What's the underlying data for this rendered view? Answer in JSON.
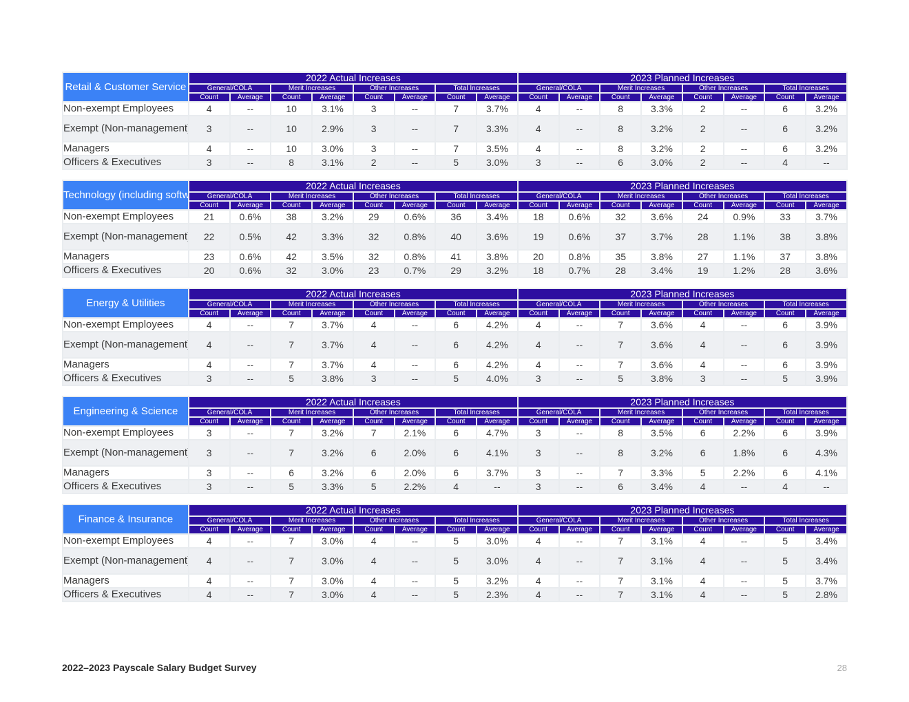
{
  "headers": {
    "group_2022": "2022 Actual Increases",
    "group_2023": "2023 Planned Increases",
    "subgroups": [
      "General/COLA",
      "Merit Increases",
      "Other Increases",
      "Total Increases"
    ],
    "count_label": "Count",
    "average_label": "Average"
  },
  "row_labels": [
    "Non-exempt Employees",
    "Exempt (Non-management) Employees",
    "Managers",
    "Officers & Executives"
  ],
  "industries": [
    {
      "name": "Retail & Customer Service",
      "rows": [
        [
          "4",
          "--",
          "10",
          "3.1%",
          "3",
          "--",
          "7",
          "3.7%",
          "4",
          "--",
          "8",
          "3.3%",
          "2",
          "--",
          "6",
          "3.2%"
        ],
        [
          "3",
          "--",
          "10",
          "2.9%",
          "3",
          "--",
          "7",
          "3.3%",
          "4",
          "--",
          "8",
          "3.2%",
          "2",
          "--",
          "6",
          "3.2%"
        ],
        [
          "4",
          "--",
          "10",
          "3.0%",
          "3",
          "--",
          "7",
          "3.5%",
          "4",
          "--",
          "8",
          "3.2%",
          "2",
          "--",
          "6",
          "3.2%"
        ],
        [
          "3",
          "--",
          "8",
          "3.1%",
          "2",
          "--",
          "5",
          "3.0%",
          "3",
          "--",
          "6",
          "3.0%",
          "2",
          "--",
          "4",
          "--"
        ]
      ]
    },
    {
      "name": "Technology (including software)",
      "rows": [
        [
          "21",
          "0.6%",
          "38",
          "3.2%",
          "29",
          "0.6%",
          "36",
          "3.4%",
          "18",
          "0.6%",
          "32",
          "3.6%",
          "24",
          "0.9%",
          "33",
          "3.7%"
        ],
        [
          "22",
          "0.5%",
          "42",
          "3.3%",
          "32",
          "0.8%",
          "40",
          "3.6%",
          "19",
          "0.6%",
          "37",
          "3.7%",
          "28",
          "1.1%",
          "38",
          "3.8%"
        ],
        [
          "23",
          "0.6%",
          "42",
          "3.5%",
          "32",
          "0.8%",
          "41",
          "3.8%",
          "20",
          "0.8%",
          "35",
          "3.8%",
          "27",
          "1.1%",
          "37",
          "3.8%"
        ],
        [
          "20",
          "0.6%",
          "32",
          "3.0%",
          "23",
          "0.7%",
          "29",
          "3.2%",
          "18",
          "0.7%",
          "28",
          "3.4%",
          "19",
          "1.2%",
          "28",
          "3.6%"
        ]
      ]
    },
    {
      "name": "Energy & Utilities",
      "rows": [
        [
          "4",
          "--",
          "7",
          "3.7%",
          "4",
          "--",
          "6",
          "4.2%",
          "4",
          "--",
          "7",
          "3.6%",
          "4",
          "--",
          "6",
          "3.9%"
        ],
        [
          "4",
          "--",
          "7",
          "3.7%",
          "4",
          "--",
          "6",
          "4.2%",
          "4",
          "--",
          "7",
          "3.6%",
          "4",
          "--",
          "6",
          "3.9%"
        ],
        [
          "4",
          "--",
          "7",
          "3.7%",
          "4",
          "--",
          "6",
          "4.2%",
          "4",
          "--",
          "7",
          "3.6%",
          "4",
          "--",
          "6",
          "3.9%"
        ],
        [
          "3",
          "--",
          "5",
          "3.8%",
          "3",
          "--",
          "5",
          "4.0%",
          "3",
          "--",
          "5",
          "3.8%",
          "3",
          "--",
          "5",
          "3.9%"
        ]
      ]
    },
    {
      "name": "Engineering & Science",
      "rows": [
        [
          "3",
          "--",
          "7",
          "3.2%",
          "7",
          "2.1%",
          "6",
          "4.7%",
          "3",
          "--",
          "8",
          "3.5%",
          "6",
          "2.2%",
          "6",
          "3.9%"
        ],
        [
          "3",
          "--",
          "7",
          "3.2%",
          "6",
          "2.0%",
          "6",
          "4.1%",
          "3",
          "--",
          "8",
          "3.2%",
          "6",
          "1.8%",
          "6",
          "4.3%"
        ],
        [
          "3",
          "--",
          "6",
          "3.2%",
          "6",
          "2.0%",
          "6",
          "3.7%",
          "3",
          "--",
          "7",
          "3.3%",
          "5",
          "2.2%",
          "6",
          "4.1%"
        ],
        [
          "3",
          "--",
          "5",
          "3.3%",
          "5",
          "2.2%",
          "4",
          "--",
          "3",
          "--",
          "6",
          "3.4%",
          "4",
          "--",
          "4",
          "--"
        ]
      ]
    },
    {
      "name": "Finance & Insurance",
      "rows": [
        [
          "4",
          "--",
          "7",
          "3.0%",
          "4",
          "--",
          "5",
          "3.0%",
          "4",
          "--",
          "7",
          "3.1%",
          "4",
          "--",
          "5",
          "3.4%"
        ],
        [
          "4",
          "--",
          "7",
          "3.0%",
          "4",
          "--",
          "5",
          "3.0%",
          "4",
          "--",
          "7",
          "3.1%",
          "4",
          "--",
          "5",
          "3.4%"
        ],
        [
          "4",
          "--",
          "7",
          "3.0%",
          "4",
          "--",
          "5",
          "3.2%",
          "4",
          "--",
          "7",
          "3.1%",
          "4",
          "--",
          "5",
          "3.7%"
        ],
        [
          "4",
          "--",
          "7",
          "3.0%",
          "4",
          "--",
          "5",
          "2.3%",
          "4",
          "--",
          "7",
          "3.1%",
          "4",
          "--",
          "5",
          "2.8%"
        ]
      ]
    }
  ],
  "footer": {
    "title": "2022–2023 Payscale Salary Budget Survey",
    "page_number": "28"
  }
}
